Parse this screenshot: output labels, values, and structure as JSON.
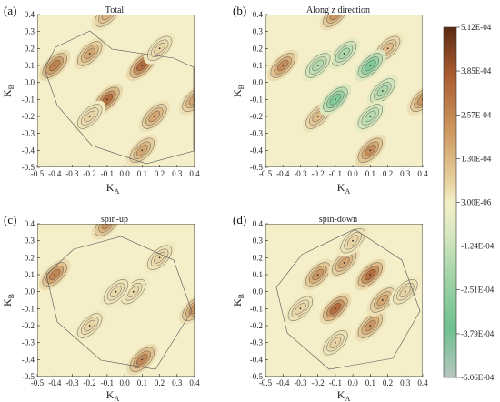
{
  "chart_data": [
    {
      "type": "heatmap",
      "panel_label": "(a)",
      "title": "Total",
      "xlabel": "K",
      "xlabel_sub": "A",
      "ylabel": "K",
      "ylabel_sub": "B",
      "xlim": [
        -0.5,
        0.4
      ],
      "ylim": [
        -0.5,
        0.4
      ],
      "xticks": [
        "-0.5",
        "-0.4",
        "-0.3",
        "-0.2",
        "-0.1",
        "0.0",
        "0.1",
        "0.2",
        "0.3",
        "0.4"
      ],
      "yticks": [
        "-0.5",
        "-0.4",
        "-0.3",
        "-0.2",
        "-0.1",
        "0.0",
        "0.1",
        "0.2",
        "0.3",
        "0.4"
      ],
      "peaks": [
        {
          "kx": -0.4,
          "ky": 0.1,
          "value": 0.00042
        },
        {
          "kx": -0.1,
          "ky": -0.1,
          "value": 0.00048
        },
        {
          "kx": 0.1,
          "ky": 0.1,
          "value": 0.00048
        },
        {
          "kx": 0.1,
          "ky": -0.4,
          "value": 0.0003
        },
        {
          "kx": 0.4,
          "ky": -0.1,
          "value": 0.0003
        },
        {
          "kx": -0.1,
          "ky": 0.4,
          "value": 0.00025
        },
        {
          "kx": 0.17,
          "ky": -0.2,
          "value": 0.0003
        },
        {
          "kx": -0.2,
          "ky": 0.17,
          "value": 0.0003
        },
        {
          "kx": -0.2,
          "ky": -0.2,
          "value": 0.00012
        },
        {
          "kx": 0.2,
          "ky": 0.2,
          "value": 0.00012
        }
      ]
    },
    {
      "type": "heatmap",
      "panel_label": "(b)",
      "title": "Along z direction",
      "xlabel": "K",
      "xlabel_sub": "A",
      "ylabel": "K",
      "ylabel_sub": "B",
      "xlim": [
        -0.5,
        0.4
      ],
      "ylim": [
        -0.5,
        0.4
      ],
      "xticks": [
        "-0.5",
        "-0.4",
        "-0.3",
        "-0.2",
        "-0.1",
        "0.0",
        "0.1",
        "0.2",
        "0.3",
        "0.4"
      ],
      "yticks": [
        "-0.5",
        "-0.4",
        "-0.3",
        "-0.2",
        "-0.1",
        "0.0",
        "0.1",
        "0.2",
        "0.3",
        "0.4"
      ],
      "peaks": [
        {
          "kx": -0.4,
          "ky": 0.1,
          "value": 0.00038
        },
        {
          "kx": 0.1,
          "ky": -0.4,
          "value": 0.00038
        },
        {
          "kx": 0.4,
          "ky": -0.1,
          "value": 0.00035
        },
        {
          "kx": -0.1,
          "ky": 0.4,
          "value": 0.00035
        },
        {
          "kx": 0.2,
          "ky": 0.2,
          "value": 0.00022
        },
        {
          "kx": -0.2,
          "ky": -0.2,
          "value": 0.00022
        },
        {
          "kx": -0.1,
          "ky": -0.1,
          "value": -0.00048
        },
        {
          "kx": 0.1,
          "ky": 0.1,
          "value": -0.00048
        },
        {
          "kx": 0.17,
          "ky": -0.05,
          "value": -0.00028
        },
        {
          "kx": -0.05,
          "ky": 0.17,
          "value": -0.00028
        },
        {
          "kx": -0.2,
          "ky": 0.1,
          "value": -0.00025
        },
        {
          "kx": 0.1,
          "ky": -0.2,
          "value": -0.00025
        }
      ]
    },
    {
      "type": "heatmap",
      "panel_label": "(c)",
      "title": "spin-up",
      "xlabel": "K",
      "xlabel_sub": "A",
      "ylabel": "K",
      "ylabel_sub": "B",
      "xlim": [
        -0.5,
        0.4
      ],
      "ylim": [
        -0.5,
        0.4
      ],
      "xticks": [
        "-0.5",
        "-0.4",
        "-0.3",
        "-0.2",
        "-0.1",
        "0.0",
        "0.1",
        "0.2",
        "0.3",
        "0.4"
      ],
      "yticks": [
        "-0.5",
        "-0.4",
        "-0.3",
        "-0.2",
        "-0.1",
        "0.0",
        "0.1",
        "0.2",
        "0.3",
        "0.4"
      ],
      "peaks": [
        {
          "kx": -0.4,
          "ky": 0.1,
          "value": 0.0004
        },
        {
          "kx": 0.1,
          "ky": -0.4,
          "value": 0.0004
        },
        {
          "kx": 0.4,
          "ky": -0.1,
          "value": 0.00035
        },
        {
          "kx": -0.1,
          "ky": 0.4,
          "value": 0.00035
        },
        {
          "kx": 0.2,
          "ky": 0.2,
          "value": 0.00012
        },
        {
          "kx": -0.2,
          "ky": -0.2,
          "value": 0.00012
        },
        {
          "kx": 0.05,
          "ky": 0.0,
          "value": 0.0001
        },
        {
          "kx": -0.05,
          "ky": 0.0,
          "value": 0.0001
        }
      ]
    },
    {
      "type": "heatmap",
      "panel_label": "(d)",
      "title": "spin-down",
      "xlabel": "K",
      "xlabel_sub": "A",
      "ylabel": "K",
      "ylabel_sub": "B",
      "xlim": [
        -0.5,
        0.4
      ],
      "ylim": [
        -0.5,
        0.4
      ],
      "xticks": [
        "-0.5",
        "-0.4",
        "-0.3",
        "-0.2",
        "-0.1",
        "0.0",
        "0.1",
        "0.2",
        "0.3",
        "0.4"
      ],
      "yticks": [
        "-0.5",
        "-0.4",
        "-0.3",
        "-0.2",
        "-0.1",
        "0.0",
        "0.1",
        "0.2",
        "0.3",
        "0.4"
      ],
      "peaks": [
        {
          "kx": -0.1,
          "ky": -0.1,
          "value": 0.00048
        },
        {
          "kx": 0.1,
          "ky": 0.1,
          "value": 0.00048
        },
        {
          "kx": -0.2,
          "ky": 0.1,
          "value": 0.00035
        },
        {
          "kx": 0.1,
          "ky": -0.2,
          "value": 0.00035
        },
        {
          "kx": 0.17,
          "ky": -0.05,
          "value": 0.0003
        },
        {
          "kx": -0.05,
          "ky": 0.17,
          "value": 0.0003
        },
        {
          "kx": -0.3,
          "ky": -0.1,
          "value": 0.00012
        },
        {
          "kx": -0.1,
          "ky": -0.3,
          "value": 0.00012
        },
        {
          "kx": 0.3,
          "ky": 0.0,
          "value": 0.00012
        },
        {
          "kx": 0.0,
          "ky": 0.3,
          "value": 0.00012
        }
      ]
    }
  ],
  "colorbar": {
    "range": [
      -0.000506,
      0.000512
    ],
    "ticks": [
      {
        "label": "5.12E-04",
        "value": 0.000512
      },
      {
        "label": "3.85E-04",
        "value": 0.000385
      },
      {
        "label": "2.57E-04",
        "value": 0.000257
      },
      {
        "label": "1.30E-04",
        "value": 0.00013
      },
      {
        "label": "3.00E-06",
        "value": 3e-06
      },
      {
        "label": "-1.24E-04",
        "value": -0.000124
      },
      {
        "label": "-2.51E-04",
        "value": -0.000251
      },
      {
        "label": "-3.79E-04",
        "value": -0.000379
      },
      {
        "label": "-5.06E-04",
        "value": -0.000506
      }
    ],
    "colors": {
      "max": "#5a2a12",
      "high": "#a85a2e",
      "mid_pos": "#d9b07a",
      "zero": "#f3efc6",
      "mid_neg": "#9fd3a6",
      "low": "#5aba86",
      "min": "#aebfb8"
    }
  }
}
